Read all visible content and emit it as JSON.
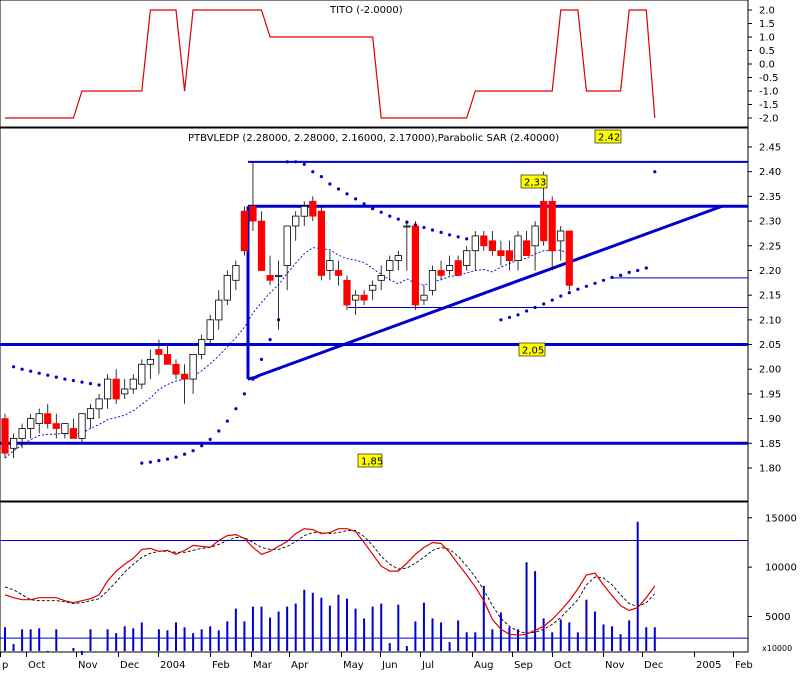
{
  "chart_data": {
    "type": "candlestick",
    "x_labels": [
      "p",
      "Oct",
      "Nov",
      "Dec",
      "2004",
      "Feb",
      "Mar",
      "Apr",
      "May",
      "Jun",
      "Jul",
      "Aug",
      "Sep",
      "Oct",
      "Nov",
      "Dec",
      "2005",
      "Feb"
    ],
    "panels": {
      "tito": {
        "title": "TITO (-2.0000)",
        "ylim": [
          -2.3,
          2.3
        ],
        "ticks": [
          "2.0",
          "1.5",
          "1.0",
          "0.5",
          "0.0",
          "-0.5",
          "-1.0",
          "-1.5",
          "-2.0"
        ],
        "tick_values": [
          2.0,
          1.5,
          1.0,
          0.5,
          0.0,
          -0.5,
          -1.0,
          -1.5,
          -2.0
        ],
        "values": [
          -2,
          -2,
          -2,
          -2,
          -2,
          -2,
          -2,
          -2,
          -2,
          -1,
          -1,
          -1,
          -1,
          -1,
          -1,
          -1,
          -1,
          2,
          2,
          2,
          2,
          -1,
          2,
          2,
          2,
          2,
          2,
          2,
          2,
          2,
          2,
          1,
          1,
          1,
          1,
          1,
          1,
          1,
          1,
          1,
          1,
          1,
          1,
          1,
          -2,
          -2,
          -2,
          -2,
          -2,
          -2,
          -2,
          -2,
          -2,
          -2,
          -2,
          -1,
          -1,
          -1,
          -1,
          -1,
          -1,
          -1,
          -1,
          -1,
          -1,
          2,
          2,
          2,
          -1,
          -1,
          -1,
          -1,
          -1,
          2,
          2,
          2,
          -2
        ]
      },
      "price": {
        "title": "PTBVLEDP (2.28000, 2.28000, 2.16000, 2.17000),Parabolic SAR (2.40000)",
        "ylim": [
          1.77,
          2.47
        ],
        "ticks": [
          "2.45",
          "2.40",
          "2.35",
          "2.30",
          "2.25",
          "2.20",
          "2.15",
          "2.10",
          "2.05",
          "2.00",
          "1.95",
          "1.90",
          "1.85",
          "1.80"
        ],
        "tick_values": [
          2.45,
          2.4,
          2.35,
          2.3,
          2.25,
          2.2,
          2.15,
          2.1,
          2.05,
          2.0,
          1.95,
          1.9,
          1.85,
          1.8
        ],
        "candles": [
          [
            1.9,
            1.91,
            1.82,
            1.83
          ],
          [
            1.84,
            1.87,
            1.82,
            1.86
          ],
          [
            1.86,
            1.89,
            1.84,
            1.88
          ],
          [
            1.88,
            1.91,
            1.86,
            1.9
          ],
          [
            1.89,
            1.92,
            1.87,
            1.91
          ],
          [
            1.91,
            1.93,
            1.88,
            1.89
          ],
          [
            1.89,
            1.91,
            1.86,
            1.88
          ],
          [
            1.87,
            1.89,
            1.86,
            1.89
          ],
          [
            1.88,
            1.9,
            1.86,
            1.86
          ],
          [
            1.86,
            1.91,
            1.85,
            1.91
          ],
          [
            1.9,
            1.93,
            1.88,
            1.92
          ],
          [
            1.92,
            1.95,
            1.9,
            1.94
          ],
          [
            1.94,
            1.99,
            1.92,
            1.98
          ],
          [
            1.98,
            2.0,
            1.93,
            1.94
          ],
          [
            1.95,
            1.98,
            1.94,
            1.96
          ],
          [
            1.96,
            1.99,
            1.95,
            1.98
          ],
          [
            1.97,
            2.02,
            1.96,
            2.01
          ],
          [
            2.01,
            2.04,
            1.98,
            2.02
          ],
          [
            2.04,
            2.06,
            1.99,
            2.03
          ],
          [
            2.03,
            2.05,
            2.01,
            2.01
          ],
          [
            2.01,
            2.02,
            1.98,
            1.99
          ],
          [
            1.99,
            2.01,
            1.93,
            1.98
          ],
          [
            1.98,
            2.03,
            1.95,
            2.03
          ],
          [
            2.03,
            2.07,
            2.02,
            2.06
          ],
          [
            2.06,
            2.11,
            2.05,
            2.1
          ],
          [
            2.1,
            2.16,
            2.08,
            2.14
          ],
          [
            2.14,
            2.2,
            2.13,
            2.19
          ],
          [
            2.18,
            2.22,
            2.16,
            2.21
          ],
          [
            2.32,
            2.33,
            2.23,
            2.24
          ],
          [
            2.33,
            2.42,
            2.28,
            2.3
          ],
          [
            2.3,
            2.32,
            2.2,
            2.2
          ],
          [
            2.19,
            2.23,
            2.17,
            2.18
          ],
          [
            2.19,
            2.22,
            2.08,
            2.19
          ],
          [
            2.21,
            2.29,
            2.16,
            2.29
          ],
          [
            2.29,
            2.32,
            2.26,
            2.31
          ],
          [
            2.31,
            2.34,
            2.29,
            2.33
          ],
          [
            2.34,
            2.35,
            2.3,
            2.31
          ],
          [
            2.32,
            2.33,
            2.18,
            2.19
          ],
          [
            2.2,
            2.24,
            2.18,
            2.22
          ],
          [
            2.2,
            2.22,
            2.17,
            2.19
          ],
          [
            2.18,
            2.19,
            2.12,
            2.13
          ],
          [
            2.14,
            2.16,
            2.11,
            2.15
          ],
          [
            2.15,
            2.16,
            2.13,
            2.14
          ],
          [
            2.16,
            2.18,
            2.14,
            2.17
          ],
          [
            2.18,
            2.21,
            2.16,
            2.19
          ],
          [
            2.2,
            2.23,
            2.18,
            2.22
          ],
          [
            2.22,
            2.24,
            2.2,
            2.23
          ],
          [
            2.29,
            2.3,
            2.2,
            2.29
          ],
          [
            2.29,
            2.3,
            2.12,
            2.13
          ],
          [
            2.14,
            2.17,
            2.13,
            2.15
          ],
          [
            2.16,
            2.21,
            2.15,
            2.2
          ],
          [
            2.2,
            2.22,
            2.18,
            2.19
          ],
          [
            2.2,
            2.23,
            2.19,
            2.21
          ],
          [
            2.22,
            2.23,
            2.19,
            2.19
          ],
          [
            2.21,
            2.25,
            2.2,
            2.24
          ],
          [
            2.24,
            2.28,
            2.2,
            2.27
          ],
          [
            2.27,
            2.28,
            2.24,
            2.25
          ],
          [
            2.26,
            2.28,
            2.23,
            2.24
          ],
          [
            2.24,
            2.26,
            2.21,
            2.23
          ],
          [
            2.24,
            2.26,
            2.2,
            2.22
          ],
          [
            2.22,
            2.28,
            2.2,
            2.27
          ],
          [
            2.26,
            2.28,
            2.23,
            2.23
          ],
          [
            2.25,
            2.3,
            2.2,
            2.29
          ],
          [
            2.34,
            2.4,
            2.25,
            2.26
          ],
          [
            2.34,
            2.35,
            2.2,
            2.24
          ],
          [
            2.26,
            2.29,
            2.22,
            2.28
          ],
          [
            2.28,
            2.28,
            2.16,
            2.17
          ]
        ],
        "candle_start_index": 0,
        "sar_points": [
          [
            1,
            2.005
          ],
          [
            2,
            2.0
          ],
          [
            3,
            1.996
          ],
          [
            4,
            1.992
          ],
          [
            5,
            1.988
          ],
          [
            6,
            1.984
          ],
          [
            7,
            1.98
          ],
          [
            8,
            1.977
          ],
          [
            9,
            1.974
          ],
          [
            10,
            1.971
          ],
          [
            11,
            1.968
          ],
          [
            12,
            1.965
          ],
          [
            13,
            1.96
          ],
          [
            14,
            1.955
          ],
          [
            16,
            1.81
          ],
          [
            17,
            1.812
          ],
          [
            18,
            1.815
          ],
          [
            19,
            1.818
          ],
          [
            20,
            1.822
          ],
          [
            21,
            1.828
          ],
          [
            22,
            1.835
          ],
          [
            23,
            1.845
          ],
          [
            24,
            1.858
          ],
          [
            25,
            1.875
          ],
          [
            26,
            1.895
          ],
          [
            27,
            1.92
          ],
          [
            28,
            1.95
          ],
          [
            29,
            1.98
          ],
          [
            30,
            2.02
          ],
          [
            31,
            2.06
          ],
          [
            32,
            2.1
          ],
          [
            33,
            2.42
          ],
          [
            34,
            2.42
          ],
          [
            35,
            2.415
          ],
          [
            36,
            2.4
          ],
          [
            37,
            2.39
          ],
          [
            38,
            2.375
          ],
          [
            39,
            2.365
          ],
          [
            40,
            2.355
          ],
          [
            41,
            2.345
          ],
          [
            42,
            2.335
          ],
          [
            43,
            2.325
          ],
          [
            44,
            2.318
          ],
          [
            45,
            2.31
          ],
          [
            46,
            2.304
          ],
          [
            47,
            2.298
          ],
          [
            48,
            2.292
          ],
          [
            49,
            2.287
          ],
          [
            50,
            2.282
          ],
          [
            51,
            2.277
          ],
          [
            52,
            2.272
          ],
          [
            53,
            2.268
          ],
          [
            54,
            2.264
          ],
          [
            55,
            2.26
          ],
          [
            56,
            2.255
          ],
          [
            58,
            2.1
          ],
          [
            59,
            2.105
          ],
          [
            60,
            2.11
          ],
          [
            61,
            2.118
          ],
          [
            62,
            2.125
          ],
          [
            63,
            2.132
          ],
          [
            64,
            2.14
          ],
          [
            65,
            2.148
          ],
          [
            66,
            2.155
          ],
          [
            67,
            2.162
          ],
          [
            68,
            2.168
          ],
          [
            69,
            2.174
          ],
          [
            70,
            2.18
          ],
          [
            71,
            2.186
          ],
          [
            72,
            2.19
          ],
          [
            73,
            2.196
          ],
          [
            74,
            2.2
          ],
          [
            75,
            2.205
          ],
          [
            76,
            2.4
          ]
        ],
        "hlines": [
          2.42,
          2.33,
          2.05,
          1.85,
          2.185,
          2.125
        ],
        "annotations": [
          "2.42",
          "2,33",
          "2,05",
          "1,85"
        ]
      },
      "lower": {
        "ticks": [
          "15000",
          "10000",
          "5000"
        ],
        "tick_values": [
          15000,
          10000,
          5000
        ],
        "ylim": [
          1500,
          16500
        ],
        "unit": "x10000",
        "hlines": [
          12700,
          2800
        ],
        "volume": [
          3900,
          2200,
          3700,
          3700,
          3800,
          1400,
          3700,
          0,
          1800,
          1100,
          3700,
          0,
          3700,
          3300,
          4000,
          3800,
          4400,
          0,
          3700,
          3600,
          4400,
          3900,
          3300,
          3700,
          4000,
          3600,
          4500,
          5800,
          4500,
          6000,
          6000,
          4900,
          5500,
          6000,
          6300,
          7700,
          7400,
          6900,
          6100,
          7200,
          6800,
          5800,
          4800,
          6000,
          6300,
          2300,
          6200,
          2000,
          4500,
          6400,
          4800,
          4400,
          2400,
          4600,
          3400,
          3400,
          8100,
          3700,
          5400,
          3900,
          3700,
          10500,
          9600,
          4800,
          3400,
          4700,
          4400,
          3400,
          6700,
          5500,
          4200,
          4000,
          3200,
          4600,
          14600,
          3900,
          3900
        ],
        "osc_solid": [
          7200,
          6900,
          6700,
          6700,
          6900,
          6900,
          6900,
          6600,
          6400,
          6600,
          6800,
          7200,
          8600,
          9600,
          10300,
          10900,
          11800,
          11900,
          11600,
          11700,
          11300,
          11700,
          12200,
          12100,
          12000,
          12700,
          13200,
          13300,
          12900,
          12000,
          11300,
          11600,
          12100,
          12600,
          13400,
          13900,
          13800,
          13400,
          13500,
          13900,
          13900,
          13600,
          12500,
          11300,
          10100,
          9600,
          9600,
          10400,
          11300,
          12000,
          12500,
          12400,
          11500,
          10300,
          9200,
          8000,
          6600,
          4700,
          3700,
          3200,
          3100,
          3200,
          3600,
          4000,
          4700,
          5600,
          6600,
          7800,
          9200,
          9400,
          8200,
          7100,
          6100,
          5600,
          5900,
          6900,
          8100
        ],
        "osc_dashed": [
          8000,
          7700,
          7200,
          6700,
          6600,
          6600,
          6600,
          6500,
          6300,
          6400,
          6600,
          6800,
          7600,
          8500,
          9500,
          10300,
          11000,
          11400,
          11600,
          11600,
          11500,
          11500,
          11700,
          11900,
          12000,
          12300,
          12700,
          13000,
          13000,
          12500,
          12000,
          11800,
          11800,
          12100,
          12600,
          13200,
          13500,
          13500,
          13400,
          13500,
          13700,
          13700,
          13100,
          12200,
          11100,
          10300,
          9800,
          9900,
          10400,
          11000,
          11700,
          12000,
          11800,
          11100,
          10100,
          9000,
          7700,
          6100,
          4800,
          4000,
          3500,
          3300,
          3400,
          3700,
          4200,
          4900,
          5800,
          6700,
          8200,
          9000,
          8900,
          8200,
          7200,
          6300,
          6000,
          6400,
          7300
        ]
      }
    }
  }
}
